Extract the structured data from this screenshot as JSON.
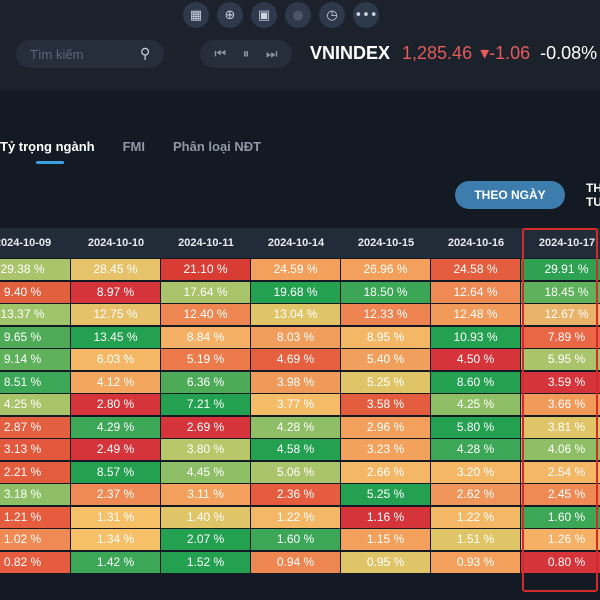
{
  "toolbar": {
    "icons": [
      "grid-icon",
      "zoom-icon",
      "calendar-icon",
      "disabled-icon",
      "clock-icon",
      "more-icon"
    ]
  },
  "search": {
    "placeholder": "Tìm kiếm"
  },
  "index": {
    "name": "VNINDEX",
    "value": "1,285.46",
    "change": "▾-1.06",
    "percent": "-0.08%"
  },
  "tabs": [
    {
      "label": "Tỷ trọng ngành",
      "active": true
    },
    {
      "label": "FMI",
      "active": false
    },
    {
      "label": "Phân loại NĐT",
      "active": false
    }
  ],
  "period": {
    "active": "THEO NGÀY",
    "next": "THEO TUẦN"
  },
  "table": {
    "headers": [
      "2024-10-09",
      "2024-10-10",
      "2024-10-11",
      "2024-10-14",
      "2024-10-15",
      "2024-10-16",
      "2024-10-17"
    ],
    "rows": [
      [
        {
          "v": "29.38 %",
          "c": "#a9c46a"
        },
        {
          "v": "28.45 %",
          "c": "#e6c26a"
        },
        {
          "v": "21.10 %",
          "c": "#d93c33"
        },
        {
          "v": "24.59 %",
          "c": "#f2a05c"
        },
        {
          "v": "26.96 %",
          "c": "#f2a05c"
        },
        {
          "v": "24.58 %",
          "c": "#e35d3e"
        },
        {
          "v": "29.91 %",
          "c": "#2ea252"
        }
      ],
      [
        {
          "v": "9.40 %",
          "c": "#e3603f"
        },
        {
          "v": "8.97 %",
          "c": "#d4343a"
        },
        {
          "v": "17.64 %",
          "c": "#a9c46a"
        },
        {
          "v": "19.68 %",
          "c": "#23a050"
        },
        {
          "v": "18.50 %",
          "c": "#3aa656"
        },
        {
          "v": "12.64 %",
          "c": "#ef8a55"
        },
        {
          "v": "18.45 %",
          "c": "#5fb15b"
        }
      ],
      [
        {
          "v": "13.37 %",
          "c": "#9fc469"
        },
        {
          "v": "12.75 %",
          "c": "#e7c06a"
        },
        {
          "v": "12.40 %",
          "c": "#ee8652"
        },
        {
          "v": "13.04 %",
          "c": "#dfc568"
        },
        {
          "v": "12.33 %",
          "c": "#ed8451"
        },
        {
          "v": "12.48 %",
          "c": "#f29a5a"
        },
        {
          "v": "12.67 %",
          "c": "#eab36a"
        }
      ],
      [
        {
          "v": "9.65 %",
          "c": "#50ab58"
        },
        {
          "v": "13.45 %",
          "c": "#23a050"
        },
        {
          "v": "8.84 %",
          "c": "#f6b066"
        },
        {
          "v": "8.03 %",
          "c": "#f19d5b"
        },
        {
          "v": "8.95 %",
          "c": "#f4b766"
        },
        {
          "v": "10.93 %",
          "c": "#23a050"
        },
        {
          "v": "7.89 %",
          "c": "#ea6746"
        }
      ],
      [
        {
          "v": "9.14 %",
          "c": "#5fb15b"
        },
        {
          "v": "6.03 %",
          "c": "#f4b766"
        },
        {
          "v": "5.19 %",
          "c": "#ed7a4b"
        },
        {
          "v": "4.69 %",
          "c": "#e6603f"
        },
        {
          "v": "5.40 %",
          "c": "#f0a05c"
        },
        {
          "v": "4.50 %",
          "c": "#d4343a"
        },
        {
          "v": "5.95 %",
          "c": "#a9c46a"
        }
      ],
      [
        {
          "v": "8.51 %",
          "c": "#3ba757"
        },
        {
          "v": "4.12 %",
          "c": "#f2a65e"
        },
        {
          "v": "6.36 %",
          "c": "#4dab58"
        },
        {
          "v": "3.98 %",
          "c": "#f09a5a"
        },
        {
          "v": "5.25 %",
          "c": "#e0c468"
        },
        {
          "v": "8.60 %",
          "c": "#23a050"
        },
        {
          "v": "3.59 %",
          "c": "#d4343a"
        }
      ],
      [
        {
          "v": "4.25 %",
          "c": "#aac46a"
        },
        {
          "v": "2.80 %",
          "c": "#d4343a"
        },
        {
          "v": "7.21 %",
          "c": "#23a050"
        },
        {
          "v": "3.77 %",
          "c": "#f5bc68"
        },
        {
          "v": "3.58 %",
          "c": "#e35c3e"
        },
        {
          "v": "4.25 %",
          "c": "#8ebf66"
        },
        {
          "v": "3.66 %",
          "c": "#f29a5a"
        }
      ],
      [
        {
          "v": "2.87 %",
          "c": "#e45f3f"
        },
        {
          "v": "4.29 %",
          "c": "#3ba757"
        },
        {
          "v": "2.69 %",
          "c": "#d4343a"
        },
        {
          "v": "4.28 %",
          "c": "#8ebf66"
        },
        {
          "v": "2.96 %",
          "c": "#f2a05c"
        },
        {
          "v": "5.80 %",
          "c": "#23a050"
        },
        {
          "v": "3.81 %",
          "c": "#dfc568"
        }
      ],
      [
        {
          "v": "3.13 %",
          "c": "#e2583d"
        },
        {
          "v": "2.49 %",
          "c": "#d4343a"
        },
        {
          "v": "3.80 %",
          "c": "#b9c76b"
        },
        {
          "v": "4.58 %",
          "c": "#23a050"
        },
        {
          "v": "3.23 %",
          "c": "#f2a25d"
        },
        {
          "v": "4.28 %",
          "c": "#3ba757"
        },
        {
          "v": "4.06 %",
          "c": "#8ebf66"
        }
      ],
      [
        {
          "v": "2.21 %",
          "c": "#e35c3e"
        },
        {
          "v": "8.57 %",
          "c": "#23a050"
        },
        {
          "v": "4.45 %",
          "c": "#8ebf66"
        },
        {
          "v": "5.06 %",
          "c": "#a9c46a"
        },
        {
          "v": "2.66 %",
          "c": "#f4b766"
        },
        {
          "v": "3.20 %",
          "c": "#f4b766"
        },
        {
          "v": "2.54 %",
          "c": "#f4b766"
        }
      ],
      [
        {
          "v": "3.18 %",
          "c": "#8ebf66"
        },
        {
          "v": "2.37 %",
          "c": "#ef8a55"
        },
        {
          "v": "3.11 %",
          "c": "#f2a05c"
        },
        {
          "v": "2.36 %",
          "c": "#e55d3e"
        },
        {
          "v": "5.25 %",
          "c": "#23a050"
        },
        {
          "v": "2.62 %",
          "c": "#f0965a"
        },
        {
          "v": "2.45 %",
          "c": "#ef8a55"
        }
      ],
      [
        {
          "v": "1.21 %",
          "c": "#e55d3e"
        },
        {
          "v": "1.31 %",
          "c": "#f5c068"
        },
        {
          "v": "1.40 %",
          "c": "#dfc568"
        },
        {
          "v": "1.22 %",
          "c": "#f4b766"
        },
        {
          "v": "1.16 %",
          "c": "#d4343a"
        },
        {
          "v": "1.22 %",
          "c": "#f4b766"
        },
        {
          "v": "1.60 %",
          "c": "#3ba757"
        }
      ],
      [
        {
          "v": "1.02 %",
          "c": "#ef8a55"
        },
        {
          "v": "1.34 %",
          "c": "#f5c068"
        },
        {
          "v": "2.07 %",
          "c": "#23a050"
        },
        {
          "v": "1.60 %",
          "c": "#3ba757"
        },
        {
          "v": "1.15 %",
          "c": "#f2a05c"
        },
        {
          "v": "1.51 %",
          "c": "#dfc568"
        },
        {
          "v": "1.26 %",
          "c": "#f6b066"
        }
      ],
      [
        {
          "v": "0.82 %",
          "c": "#e55d3e"
        },
        {
          "v": "1.42 %",
          "c": "#3ba757"
        },
        {
          "v": "1.52 %",
          "c": "#23a050"
        },
        {
          "v": "0.94 %",
          "c": "#ee8652"
        },
        {
          "v": "0.95 %",
          "c": "#dfc568"
        },
        {
          "v": "0.93 %",
          "c": "#f2a05c"
        },
        {
          "v": "0.80 %",
          "c": "#d4343a"
        }
      ]
    ]
  }
}
